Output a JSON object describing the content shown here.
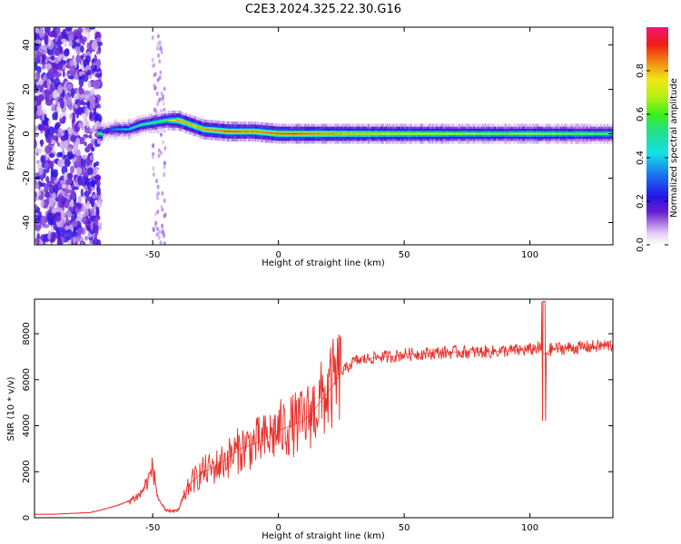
{
  "title": "C2E3.2024.325.22.30.G16",
  "chart_data": [
    {
      "type": "heatmap",
      "xlabel": "Height of straight line (km)",
      "ylabel": "Frequency (Hz)",
      "xlim": [
        -97,
        133
      ],
      "ylim": [
        -50,
        48
      ],
      "xticks": [
        -50,
        0,
        50,
        100
      ],
      "yticks": [
        -40,
        -20,
        0,
        20,
        40
      ],
      "colorbar": {
        "label": "Normalized spectral amplitude",
        "range": [
          0,
          1
        ],
        "ticks": [
          "0.0",
          "0.2",
          "0.4",
          "0.6",
          "0.8"
        ]
      },
      "ridge": [
        {
          "x": -70,
          "f": 1,
          "a": 0.25
        },
        {
          "x": -65,
          "f": 2,
          "a": 0.35
        },
        {
          "x": -60,
          "f": 2,
          "a": 0.4
        },
        {
          "x": -55,
          "f": 4,
          "a": 0.5
        },
        {
          "x": -50,
          "f": 5,
          "a": 0.55
        },
        {
          "x": -45,
          "f": 6,
          "a": 0.6
        },
        {
          "x": -40,
          "f": 6,
          "a": 0.85
        },
        {
          "x": -35,
          "f": 4,
          "a": 0.8
        },
        {
          "x": -30,
          "f": 2,
          "a": 0.85
        },
        {
          "x": -20,
          "f": 1,
          "a": 0.9
        },
        {
          "x": -10,
          "f": 1,
          "a": 0.85
        },
        {
          "x": 0,
          "f": 0,
          "a": 0.9
        },
        {
          "x": 10,
          "f": 0,
          "a": 0.9
        },
        {
          "x": 20,
          "f": 0,
          "a": 0.85
        },
        {
          "x": 30,
          "f": 0,
          "a": 0.8
        },
        {
          "x": 50,
          "f": 0,
          "a": 0.75
        },
        {
          "x": 70,
          "f": 0,
          "a": 0.7
        },
        {
          "x": 90,
          "f": 0,
          "a": 0.65
        },
        {
          "x": 100,
          "f": 0,
          "a": 0.7
        },
        {
          "x": 110,
          "f": 0,
          "a": 0.65
        },
        {
          "x": 133,
          "f": 0,
          "a": 0.6
        }
      ]
    },
    {
      "type": "line",
      "xlabel": "Height of straight line (km)",
      "ylabel": "SNR (10 * v/v)",
      "xlim": [
        -97,
        133
      ],
      "ylim": [
        0,
        9500
      ],
      "xticks": [
        -50,
        0,
        50,
        100
      ],
      "yticks": [
        0,
        2000,
        4000,
        6000,
        8000
      ],
      "series": [
        {
          "color": "#e8302a",
          "x": [
            -97,
            -90,
            -80,
            -75,
            -70,
            -65,
            -60,
            -55,
            -52,
            -50,
            -48,
            -45,
            -40,
            -35,
            -30,
            -25,
            -20,
            -15,
            -10,
            -5,
            0,
            5,
            10,
            15,
            20,
            25,
            30,
            35,
            40,
            45,
            50,
            60,
            70,
            80,
            90,
            100,
            103,
            106,
            108,
            110,
            120,
            133
          ],
          "values": [
            150,
            150,
            200,
            220,
            350,
            500,
            700,
            1000,
            1600,
            2200,
            900,
            300,
            300,
            1500,
            2000,
            2200,
            2600,
            3000,
            3200,
            3400,
            3800,
            4000,
            4200,
            4800,
            5500,
            6300,
            6800,
            6900,
            7000,
            7000,
            7100,
            7150,
            7200,
            7200,
            7250,
            7300,
            7400,
            7100,
            7300,
            7350,
            7400,
            7500
          ]
        }
      ]
    }
  ]
}
